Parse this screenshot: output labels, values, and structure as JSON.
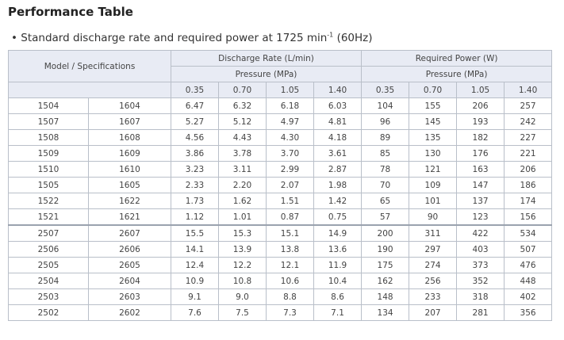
{
  "title": "Performance Table",
  "subtitle": {
    "prefix": "• Standard discharge rate and required power at 1725 min",
    "sup": "-1",
    "suffix": " (60Hz)"
  },
  "table": {
    "model_header": "Model / Specifications",
    "discharge_header": "Discharge Rate (L/min)",
    "power_header": "Required Power (W)",
    "pressure_header": "Pressure (MPa)",
    "pressures": [
      "0.35",
      "0.70",
      "1.05",
      "1.40"
    ],
    "groups": [
      [
        {
          "model_a": "1504",
          "model_b": "1604",
          "discharge": [
            "6.47",
            "6.32",
            "6.18",
            "6.03"
          ],
          "power": [
            "104",
            "155",
            "206",
            "257"
          ]
        },
        {
          "model_a": "1507",
          "model_b": "1607",
          "discharge": [
            "5.27",
            "5.12",
            "4.97",
            "4.81"
          ],
          "power": [
            "96",
            "145",
            "193",
            "242"
          ]
        },
        {
          "model_a": "1508",
          "model_b": "1608",
          "discharge": [
            "4.56",
            "4.43",
            "4.30",
            "4.18"
          ],
          "power": [
            "89",
            "135",
            "182",
            "227"
          ]
        },
        {
          "model_a": "1509",
          "model_b": "1609",
          "discharge": [
            "3.86",
            "3.78",
            "3.70",
            "3.61"
          ],
          "power": [
            "85",
            "130",
            "176",
            "221"
          ]
        },
        {
          "model_a": "1510",
          "model_b": "1610",
          "discharge": [
            "3.23",
            "3.11",
            "2.99",
            "2.87"
          ],
          "power": [
            "78",
            "121",
            "163",
            "206"
          ]
        },
        {
          "model_a": "1505",
          "model_b": "1605",
          "discharge": [
            "2.33",
            "2.20",
            "2.07",
            "1.98"
          ],
          "power": [
            "70",
            "109",
            "147",
            "186"
          ]
        },
        {
          "model_a": "1522",
          "model_b": "1622",
          "discharge": [
            "1.73",
            "1.62",
            "1.51",
            "1.42"
          ],
          "power": [
            "65",
            "101",
            "137",
            "174"
          ]
        },
        {
          "model_a": "1521",
          "model_b": "1621",
          "discharge": [
            "1.12",
            "1.01",
            "0.87",
            "0.75"
          ],
          "power": [
            "57",
            "90",
            "123",
            "156"
          ]
        }
      ],
      [
        {
          "model_a": "2507",
          "model_b": "2607",
          "discharge": [
            "15.5",
            "15.3",
            "15.1",
            "14.9"
          ],
          "power": [
            "200",
            "311",
            "422",
            "534"
          ]
        },
        {
          "model_a": "2506",
          "model_b": "2606",
          "discharge": [
            "14.1",
            "13.9",
            "13.8",
            "13.6"
          ],
          "power": [
            "190",
            "297",
            "403",
            "507"
          ]
        },
        {
          "model_a": "2505",
          "model_b": "2605",
          "discharge": [
            "12.4",
            "12.2",
            "12.1",
            "11.9"
          ],
          "power": [
            "175",
            "274",
            "373",
            "476"
          ]
        },
        {
          "model_a": "2504",
          "model_b": "2604",
          "discharge": [
            "10.9",
            "10.8",
            "10.6",
            "10.4"
          ],
          "power": [
            "162",
            "256",
            "352",
            "448"
          ]
        },
        {
          "model_a": "2503",
          "model_b": "2603",
          "discharge": [
            "9.1",
            "9.0",
            "8.8",
            "8.6"
          ],
          "power": [
            "148",
            "233",
            "318",
            "402"
          ]
        },
        {
          "model_a": "2502",
          "model_b": "2602",
          "discharge": [
            "7.6",
            "7.5",
            "7.3",
            "7.1"
          ],
          "power": [
            "134",
            "207",
            "281",
            "356"
          ]
        }
      ]
    ]
  }
}
